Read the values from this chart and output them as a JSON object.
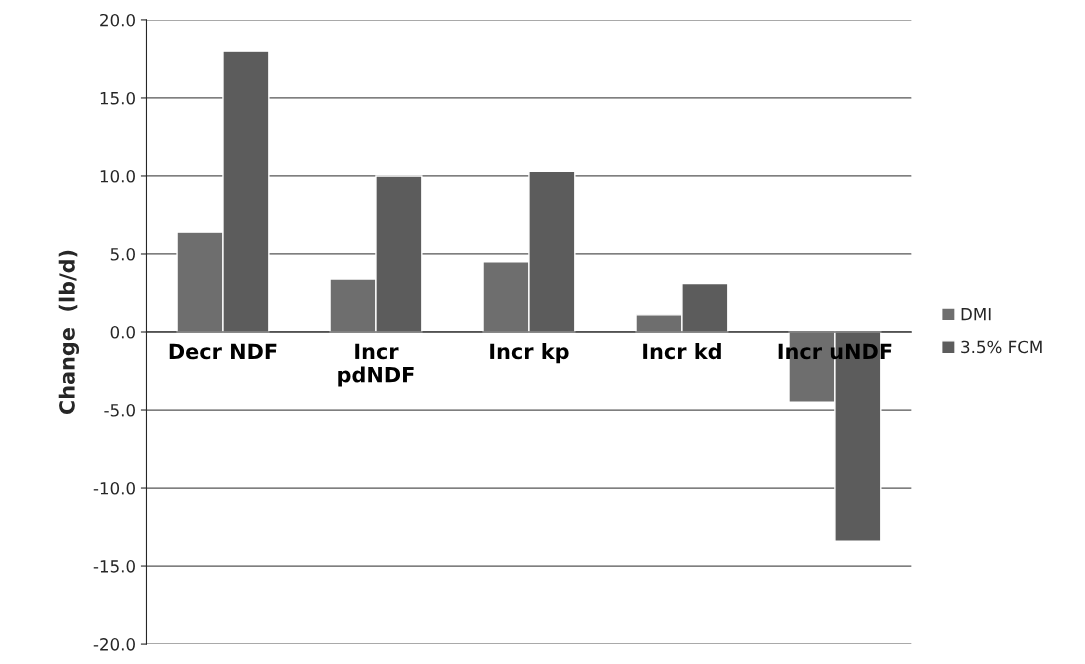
{
  "chart_data": {
    "type": "bar",
    "ylabel": "Change  (lb/d)",
    "categories": [
      "Decr NDF",
      "Incr\npdNDF",
      "Incr kp",
      "Incr kd",
      "Incr uNDF"
    ],
    "series": [
      {
        "name": "DMI",
        "color": "#6e6e6e",
        "values": [
          6.4,
          3.4,
          4.5,
          1.1,
          -4.5
        ]
      },
      {
        "name": "3.5% FCM",
        "color": "#5c5c5c",
        "values": [
          18.0,
          10.0,
          10.3,
          3.1,
          -13.4
        ]
      }
    ],
    "ylim": [
      -20,
      20
    ],
    "yticks": [
      {
        "value": -20,
        "label": "-20.0"
      },
      {
        "value": -15,
        "label": "-15.0"
      },
      {
        "value": -10,
        "label": "-10.0"
      },
      {
        "value": -5,
        "label": "-5.0"
      },
      {
        "value": 0,
        "label": "0.0"
      },
      {
        "value": 5,
        "label": "5.0"
      },
      {
        "value": 10,
        "label": "10.0"
      },
      {
        "value": 15,
        "label": "15.0"
      },
      {
        "value": 20,
        "label": "20.0"
      }
    ],
    "grid": "y",
    "legend": "right"
  }
}
